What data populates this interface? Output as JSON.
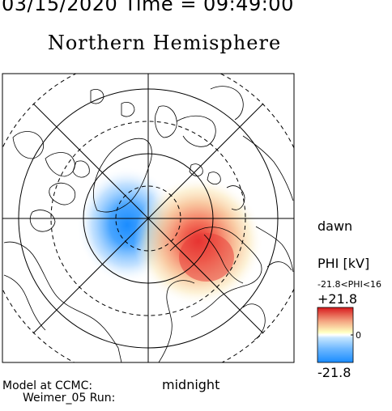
{
  "header": {
    "datetime": "03/15/2020 Time = 09:49:00",
    "title": "Northern Hemisphere"
  },
  "map": {
    "dawn_label": "dawn",
    "midnight_label": "midnight",
    "projection": "polar",
    "field": "PHI"
  },
  "colorbar": {
    "title": "PHI [kV]",
    "range_text": "-21.8<PHI<16",
    "max_label": "+21.8",
    "zero_label": "0",
    "min_label": "-21.8",
    "colors": {
      "max": "#d7191c",
      "mid": "#ffffff",
      "min": "#1a8cff"
    }
  },
  "footer": {
    "line1": "Model at CCMC:",
    "line2": "Weimer_05 Run:"
  }
}
